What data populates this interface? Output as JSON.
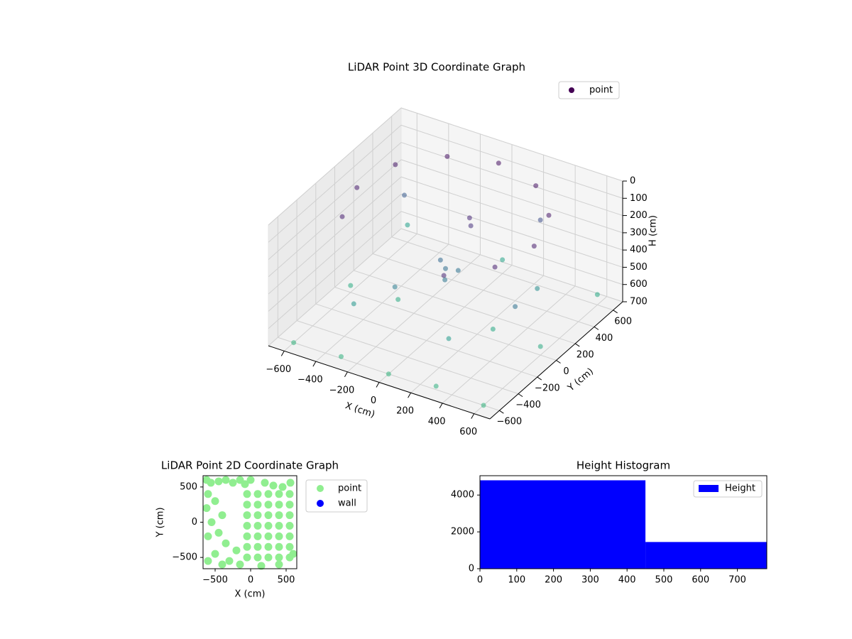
{
  "chart_data": [
    {
      "type": "scatter3d",
      "title": "LiDAR Point 3D Coordinate Graph",
      "xlabel": "X (cm)",
      "ylabel": "Y (cm)",
      "zlabel": "H (cm)",
      "xlim": [
        -700,
        700
      ],
      "ylim": [
        -700,
        700
      ],
      "zlim": [
        0,
        700
      ],
      "zinvert": true,
      "grid": true,
      "colormap": "viridis",
      "legend": "upper right",
      "xticks": [
        {
          "value": -600,
          "label": "−600"
        },
        {
          "value": -400,
          "label": "−400"
        },
        {
          "value": -200,
          "label": "−200"
        },
        0,
        200,
        400,
        600
      ],
      "yticks": [
        {
          "value": -600,
          "label": "−600"
        },
        {
          "value": -400,
          "label": "−400"
        },
        {
          "value": -200,
          "label": "−200"
        },
        0,
        200,
        400,
        600
      ],
      "zticks": [
        0,
        100,
        200,
        300,
        400,
        500,
        600,
        700
      ],
      "series": [
        {
          "name": "point",
          "color": "#440154",
          "x": [
            560,
            485,
            280,
            0,
            -280,
            -485,
            -560,
            -485,
            480,
            280,
            0,
            50,
            -50,
            20,
            100,
            80,
            -600,
            -300,
            0,
            300,
            600,
            -600,
            -300,
            300,
            600,
            -600,
            0,
            600,
            -400,
            200,
            400,
            -500,
            300,
            -200,
            500
          ],
          "y": [
            0,
            280,
            485,
            560,
            485,
            280,
            0,
            -280,
            -280,
            -485,
            0,
            50,
            30,
            -40,
            100,
            120,
            -600,
            -600,
            -600,
            -600,
            -600,
            0,
            0,
            0,
            0,
            600,
            600,
            600,
            -300,
            -300,
            300,
            400,
            500,
            -200,
            -100
          ],
          "z": [
            80,
            60,
            50,
            40,
            50,
            60,
            80,
            90,
            90,
            100,
            380,
            400,
            360,
            420,
            150,
            120,
            700,
            690,
            700,
            680,
            700,
            660,
            650,
            640,
            650,
            600,
            620,
            640,
            560,
            580,
            520,
            300,
            250,
            450,
            400
          ]
        }
      ]
    },
    {
      "type": "scatter",
      "title": "LiDAR Point 2D Coordinate Graph",
      "xlabel": "X (cm)",
      "ylabel": "Y (cm)",
      "xlim": [
        -670,
        650
      ],
      "ylim": [
        -660,
        660
      ],
      "legend": "outside right",
      "xticks": [
        {
          "value": -500,
          "label": "−500"
        },
        0,
        500
      ],
      "yticks": [
        {
          "value": -500,
          "label": "−500"
        },
        0,
        500
      ],
      "series": [
        {
          "name": "point",
          "color": "#90ee90",
          "x": [
            -620,
            -560,
            -450,
            -350,
            -250,
            -150,
            -80,
            200,
            320,
            450,
            560,
            -600,
            -500,
            -620,
            -400,
            -550,
            -600,
            -450,
            -350,
            -500,
            -600,
            -300,
            -200,
            -150,
            -400,
            0,
            150,
            400,
            600,
            -50,
            100,
            250,
            400,
            550,
            -50,
            100,
            250,
            400,
            550,
            -50,
            100,
            250,
            400,
            550,
            -50,
            100,
            250,
            400,
            550,
            -50,
            100,
            250,
            400,
            550,
            -50,
            100,
            250,
            400,
            550,
            -50,
            100,
            250,
            400,
            550
          ],
          "y": [
            600,
            560,
            580,
            600,
            560,
            600,
            540,
            560,
            520,
            500,
            560,
            400,
            300,
            200,
            100,
            0,
            -200,
            -150,
            -300,
            -450,
            -550,
            -550,
            -400,
            -600,
            -600,
            600,
            -620,
            -600,
            -450,
            -500,
            -500,
            -500,
            -500,
            -500,
            -350,
            -350,
            -350,
            -350,
            -350,
            -200,
            -200,
            -200,
            -200,
            -200,
            -50,
            -50,
            -50,
            -50,
            -50,
            100,
            100,
            100,
            100,
            100,
            250,
            250,
            250,
            250,
            250,
            400,
            400,
            400,
            400,
            400
          ]
        },
        {
          "name": "wall",
          "color": "#0000ff",
          "x": [],
          "y": []
        }
      ]
    },
    {
      "type": "histogram",
      "title": "Height Histogram",
      "name": "Height",
      "color": "#0000ff",
      "legend": "upper right",
      "bins": [
        0,
        450,
        780
      ],
      "counts": [
        4800,
        1450
      ],
      "xlim": [
        0,
        780
      ],
      "ylim": [
        0,
        5050
      ],
      "xticks": [
        0,
        100,
        200,
        300,
        400,
        500,
        600,
        700
      ],
      "yticks": [
        0,
        2000,
        4000
      ]
    }
  ]
}
